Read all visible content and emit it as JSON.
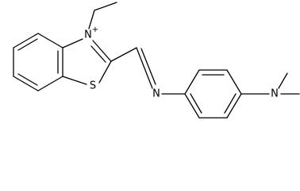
{
  "atoms": {
    "thiazolium_n": "N",
    "charge": "+",
    "sulfur": "S",
    "imine_n": "N",
    "amine_n": "N"
  }
}
